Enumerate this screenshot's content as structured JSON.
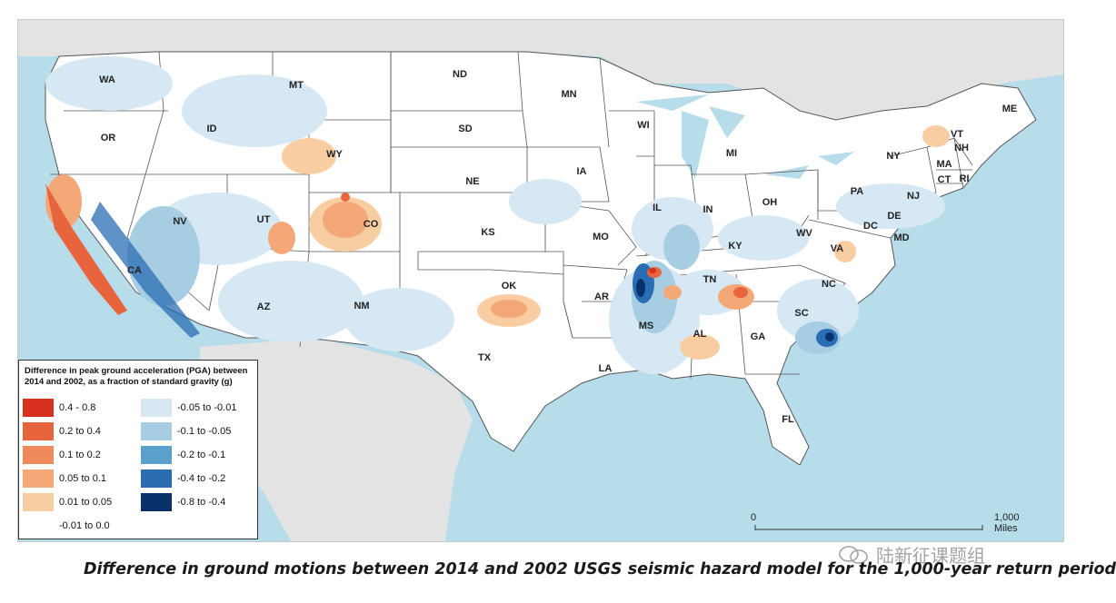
{
  "colors": {
    "ocean": "#b7dcea",
    "land": "#ffffff",
    "foreign_land": "#e3e3e3",
    "state_border": "#555555",
    "pos_04_08": "#d7301f",
    "pos_02_04": "#e8643c",
    "pos_01_02": "#f08a5c",
    "pos_005_01": "#f4a877",
    "pos_001_005": "#f9cda2",
    "neg_005_001": "#d6e8f3",
    "neg_01_005": "#a6cde2",
    "neg_02_01": "#5b9fcd",
    "neg_04_02": "#2a6db3",
    "neg_08_04": "#08306b"
  },
  "states": [
    "WA",
    "OR",
    "CA",
    "ID",
    "NV",
    "MT",
    "WY",
    "UT",
    "AZ",
    "CO",
    "NM",
    "ND",
    "SD",
    "NE",
    "KS",
    "OK",
    "TX",
    "MN",
    "IA",
    "MO",
    "AR",
    "LA",
    "WI",
    "IL",
    "MI",
    "IN",
    "OH",
    "KY",
    "TN",
    "MS",
    "AL",
    "GA",
    "FL",
    "SC",
    "NC",
    "VA",
    "WV",
    "PA",
    "NY",
    "VT",
    "NH",
    "ME",
    "MA",
    "CT",
    "RI",
    "NJ",
    "DE",
    "DC",
    "MD"
  ],
  "legend": {
    "title": "Difference in peak ground acceleration (PGA) between 2014 and 2002, as a fraction of standard gravity (g)",
    "left_items": [
      {
        "label": "0.4 - 0.8",
        "color": "#d7301f"
      },
      {
        "label": "0.2 to 0.4",
        "color": "#e8643c"
      },
      {
        "label": "0.1 to 0.2",
        "color": "#f08a5c"
      },
      {
        "label": "0.05 to 0.1",
        "color": "#f4a877"
      },
      {
        "label": "0.01 to 0.05",
        "color": "#f9cda2"
      },
      {
        "label": "-0.01 to 0.0",
        "color": "#ffffff"
      }
    ],
    "right_items": [
      {
        "label": "-0.05 to -0.01",
        "color": "#d6e8f3"
      },
      {
        "label": "-0.1 to -0.05",
        "color": "#a6cde2"
      },
      {
        "label": "-0.2 to -0.1",
        "color": "#5b9fcd"
      },
      {
        "label": "-0.4 to -0.2",
        "color": "#2a6db3"
      },
      {
        "label": "-0.8 to -0.4",
        "color": "#08306b"
      }
    ]
  },
  "scale": {
    "start": "0",
    "end": "1,000 Miles"
  },
  "caption": "Difference in ground motions between 2014 and 2002 USGS seismic hazard model for the 1,000-year return period",
  "watermark": "陆新征课题组"
}
